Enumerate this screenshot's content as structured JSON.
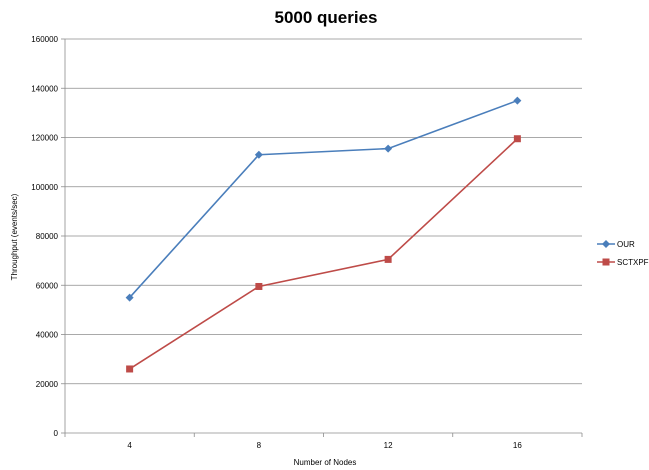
{
  "chart_data": {
    "type": "line",
    "title": "5000 queries",
    "xlabel": "Number of Nodes",
    "ylabel": "Throughput (events/sec)",
    "categories": [
      "4",
      "8",
      "12",
      "16"
    ],
    "ylim": [
      0,
      160000
    ],
    "yticks": [
      "0",
      "20000",
      "40000",
      "60000",
      "80000",
      "100000",
      "120000",
      "140000",
      "160000"
    ],
    "grid": true,
    "legend_position": "right",
    "series": [
      {
        "name": "OUR",
        "color": "#4a7ebb",
        "marker": "diamond",
        "values": [
          55000,
          113000,
          115500,
          135000
        ]
      },
      {
        "name": "SCTXPF",
        "color": "#be4b48",
        "marker": "square",
        "values": [
          26000,
          59500,
          70500,
          119500
        ]
      }
    ]
  }
}
